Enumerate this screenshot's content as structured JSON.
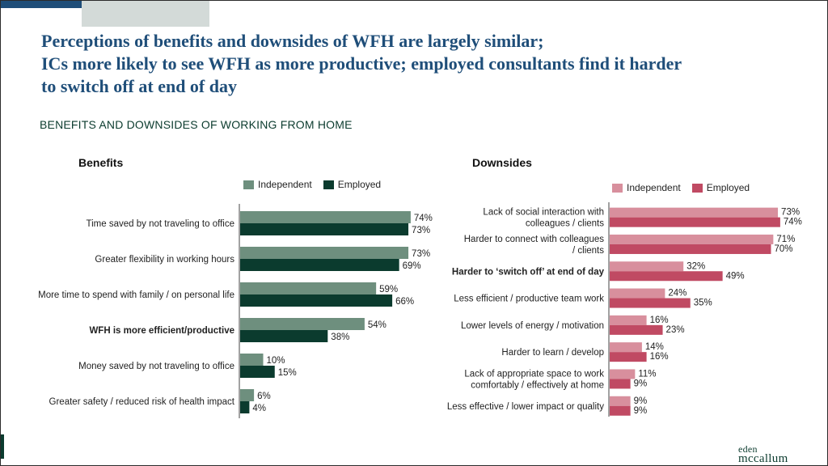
{
  "headline": {
    "line1": "Perceptions of benefits and downsides of WFH are largely similar;",
    "line2": "ICs more likely to see WFH as more productive; employed consultants find it harder",
    "line3": "to switch off at end of day"
  },
  "section_title": "BENEFITS AND DOWNSIDES OF WORKING FROM HOME",
  "brand": {
    "line1": "eden",
    "line2": "mccallum"
  },
  "colors": {
    "benefits_independent": "#6e8f7e",
    "benefits_employed": "#0b3b2e",
    "downsides_independent": "#d88f9d",
    "downsides_employed": "#c04a63"
  },
  "chart_data": [
    {
      "type": "bar",
      "orientation": "horizontal",
      "title": "Benefits",
      "xlim": [
        0,
        100
      ],
      "categories": [
        "Time saved by not traveling to office",
        "Greater flexibility  in working  hours",
        "More time to spend with family / on personal life",
        "WFH is more efficient/productive",
        "Money saved by not traveling to office",
        "Greater safety / reduced risk of health impact"
      ],
      "category_lines": [
        [
          "Time saved by not traveling to office"
        ],
        [
          "Greater flexibility  in working  hours"
        ],
        [
          "More time to spend with family / on personal life"
        ],
        [
          "WFH is more efficient/productive"
        ],
        [
          "Money saved by not traveling to office"
        ],
        [
          "Greater safety / reduced risk of health impact"
        ]
      ],
      "bold_categories": [
        3
      ],
      "series": [
        {
          "name": "Independent",
          "values": [
            74,
            73,
            59,
            54,
            10,
            6
          ],
          "labels": [
            "74%",
            "73%",
            "59%",
            "54%",
            "10%",
            "6%"
          ]
        },
        {
          "name": "Employed",
          "values": [
            73,
            69,
            66,
            38,
            15,
            4
          ],
          "labels": [
            "73%",
            "69%",
            "66%",
            "38%",
            "15%",
            "4%"
          ]
        }
      ],
      "legend_position": "top"
    },
    {
      "type": "bar",
      "orientation": "horizontal",
      "title": "Downsides",
      "xlim": [
        0,
        100
      ],
      "categories": [
        "Lack of social interaction with colleagues / clients",
        "Harder to connect with colleagues / clients",
        "Harder to ‘switch off’ at end of day",
        "Less efficient / productive team work",
        "Lower levels of energy / motivation",
        "Harder to learn / develop",
        "Lack of appropriate space to work comfortably / effectively at home",
        "Less effective / lower impact or quality"
      ],
      "category_lines": [
        [
          "Lack of social interaction with",
          "colleagues / clients"
        ],
        [
          "Harder to connect with  colleagues",
          "/ clients"
        ],
        [
          "Harder to ‘switch off’ at end of day"
        ],
        [
          "Less efficient / productive team work"
        ],
        [
          "Lower levels of energy / motivation"
        ],
        [
          "Harder to learn / develop"
        ],
        [
          "Lack of appropriate space to work",
          "comfortably / effectively at home"
        ],
        [
          "Less effective / lower impact or quality"
        ]
      ],
      "bold_categories": [
        2
      ],
      "series": [
        {
          "name": "Independent",
          "values": [
            73,
            71,
            32,
            24,
            16,
            14,
            11,
            9
          ],
          "labels": [
            "73%",
            "71%",
            "32%",
            "24%",
            "16%",
            "14%",
            "11%",
            "9%"
          ]
        },
        {
          "name": "Employed",
          "values": [
            74,
            70,
            49,
            35,
            23,
            16,
            9,
            9
          ],
          "labels": [
            "74%",
            "70%",
            "49%",
            "35%",
            "23%",
            "16%",
            "9%",
            "9%"
          ]
        }
      ],
      "legend_position": "top"
    }
  ]
}
